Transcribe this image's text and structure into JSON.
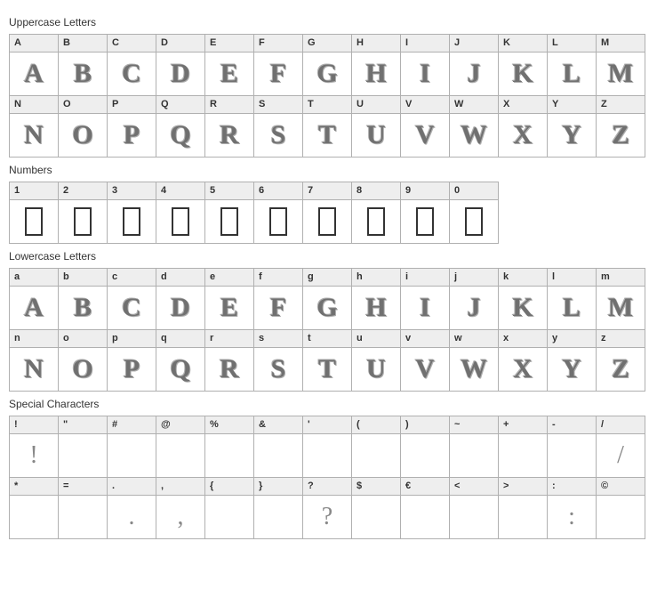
{
  "sections": [
    {
      "title": "Uppercase Letters",
      "row_length": 13,
      "chars": [
        {
          "label": "A",
          "glyph": "A",
          "style": "decorative"
        },
        {
          "label": "B",
          "glyph": "B",
          "style": "decorative"
        },
        {
          "label": "C",
          "glyph": "C",
          "style": "decorative"
        },
        {
          "label": "D",
          "glyph": "D",
          "style": "decorative"
        },
        {
          "label": "E",
          "glyph": "E",
          "style": "decorative"
        },
        {
          "label": "F",
          "glyph": "F",
          "style": "decorative"
        },
        {
          "label": "G",
          "glyph": "G",
          "style": "decorative"
        },
        {
          "label": "H",
          "glyph": "H",
          "style": "decorative"
        },
        {
          "label": "I",
          "glyph": "I",
          "style": "decorative"
        },
        {
          "label": "J",
          "glyph": "J",
          "style": "decorative"
        },
        {
          "label": "K",
          "glyph": "K",
          "style": "decorative"
        },
        {
          "label": "L",
          "glyph": "L",
          "style": "decorative"
        },
        {
          "label": "M",
          "glyph": "M",
          "style": "decorative"
        },
        {
          "label": "N",
          "glyph": "N",
          "style": "decorative"
        },
        {
          "label": "O",
          "glyph": "O",
          "style": "decorative"
        },
        {
          "label": "P",
          "glyph": "P",
          "style": "decorative"
        },
        {
          "label": "Q",
          "glyph": "Q",
          "style": "decorative"
        },
        {
          "label": "R",
          "glyph": "R",
          "style": "decorative"
        },
        {
          "label": "S",
          "glyph": "S",
          "style": "decorative"
        },
        {
          "label": "T",
          "glyph": "T",
          "style": "decorative"
        },
        {
          "label": "U",
          "glyph": "U",
          "style": "decorative"
        },
        {
          "label": "V",
          "glyph": "V",
          "style": "decorative"
        },
        {
          "label": "W",
          "glyph": "W",
          "style": "decorative"
        },
        {
          "label": "X",
          "glyph": "X",
          "style": "decorative"
        },
        {
          "label": "Y",
          "glyph": "Y",
          "style": "decorative"
        },
        {
          "label": "Z",
          "glyph": "Z",
          "style": "decorative"
        }
      ]
    },
    {
      "title": "Numbers",
      "row_length": 10,
      "chars": [
        {
          "label": "1",
          "glyph": "",
          "style": "empty-box"
        },
        {
          "label": "2",
          "glyph": "",
          "style": "empty-box"
        },
        {
          "label": "3",
          "glyph": "",
          "style": "empty-box"
        },
        {
          "label": "4",
          "glyph": "",
          "style": "empty-box"
        },
        {
          "label": "5",
          "glyph": "",
          "style": "empty-box"
        },
        {
          "label": "6",
          "glyph": "",
          "style": "empty-box"
        },
        {
          "label": "7",
          "glyph": "",
          "style": "empty-box"
        },
        {
          "label": "8",
          "glyph": "",
          "style": "empty-box"
        },
        {
          "label": "9",
          "glyph": "",
          "style": "empty-box"
        },
        {
          "label": "0",
          "glyph": "",
          "style": "empty-box"
        }
      ]
    },
    {
      "title": "Lowercase Letters",
      "row_length": 13,
      "chars": [
        {
          "label": "a",
          "glyph": "A",
          "style": "decorative"
        },
        {
          "label": "b",
          "glyph": "B",
          "style": "decorative"
        },
        {
          "label": "c",
          "glyph": "C",
          "style": "decorative"
        },
        {
          "label": "d",
          "glyph": "D",
          "style": "decorative"
        },
        {
          "label": "e",
          "glyph": "E",
          "style": "decorative"
        },
        {
          "label": "f",
          "glyph": "F",
          "style": "decorative"
        },
        {
          "label": "g",
          "glyph": "G",
          "style": "decorative"
        },
        {
          "label": "h",
          "glyph": "H",
          "style": "decorative"
        },
        {
          "label": "i",
          "glyph": "I",
          "style": "decorative"
        },
        {
          "label": "j",
          "glyph": "J",
          "style": "decorative"
        },
        {
          "label": "k",
          "glyph": "K",
          "style": "decorative"
        },
        {
          "label": "l",
          "glyph": "L",
          "style": "decorative"
        },
        {
          "label": "m",
          "glyph": "M",
          "style": "decorative"
        },
        {
          "label": "n",
          "glyph": "N",
          "style": "decorative"
        },
        {
          "label": "o",
          "glyph": "O",
          "style": "decorative"
        },
        {
          "label": "p",
          "glyph": "P",
          "style": "decorative"
        },
        {
          "label": "q",
          "glyph": "Q",
          "style": "decorative"
        },
        {
          "label": "r",
          "glyph": "R",
          "style": "decorative"
        },
        {
          "label": "s",
          "glyph": "S",
          "style": "decorative"
        },
        {
          "label": "t",
          "glyph": "T",
          "style": "decorative"
        },
        {
          "label": "u",
          "glyph": "U",
          "style": "decorative"
        },
        {
          "label": "v",
          "glyph": "V",
          "style": "decorative"
        },
        {
          "label": "w",
          "glyph": "W",
          "style": "decorative"
        },
        {
          "label": "x",
          "glyph": "X",
          "style": "decorative"
        },
        {
          "label": "y",
          "glyph": "Y",
          "style": "decorative"
        },
        {
          "label": "z",
          "glyph": "Z",
          "style": "decorative"
        }
      ]
    },
    {
      "title": "Special Characters",
      "row_length": 13,
      "chars": [
        {
          "label": "!",
          "glyph": "!",
          "style": "special"
        },
        {
          "label": "\"",
          "glyph": "",
          "style": "blank"
        },
        {
          "label": "#",
          "glyph": "",
          "style": "blank"
        },
        {
          "label": "@",
          "glyph": "",
          "style": "blank"
        },
        {
          "label": "%",
          "glyph": "",
          "style": "blank"
        },
        {
          "label": "&",
          "glyph": "",
          "style": "blank"
        },
        {
          "label": "'",
          "glyph": "",
          "style": "blank"
        },
        {
          "label": "(",
          "glyph": "",
          "style": "blank"
        },
        {
          "label": ")",
          "glyph": "",
          "style": "blank"
        },
        {
          "label": "~",
          "glyph": "",
          "style": "blank"
        },
        {
          "label": "+",
          "glyph": "",
          "style": "blank"
        },
        {
          "label": "-",
          "glyph": "",
          "style": "blank"
        },
        {
          "label": "/",
          "glyph": "/",
          "style": "special"
        },
        {
          "label": "*",
          "glyph": "",
          "style": "blank"
        },
        {
          "label": "=",
          "glyph": "",
          "style": "blank"
        },
        {
          "label": ".",
          "glyph": ".",
          "style": "special"
        },
        {
          "label": ",",
          "glyph": ",",
          "style": "special"
        },
        {
          "label": "{",
          "glyph": "",
          "style": "blank"
        },
        {
          "label": "}",
          "glyph": "",
          "style": "blank"
        },
        {
          "label": "?",
          "glyph": "?",
          "style": "special"
        },
        {
          "label": "$",
          "glyph": "",
          "style": "blank"
        },
        {
          "label": "€",
          "glyph": "",
          "style": "blank"
        },
        {
          "label": "<",
          "glyph": "",
          "style": "blank"
        },
        {
          "label": ">",
          "glyph": "",
          "style": "blank"
        },
        {
          "label": ":",
          "glyph": ":",
          "style": "special"
        },
        {
          "label": "©",
          "glyph": "",
          "style": "blank"
        }
      ]
    }
  ],
  "colors": {
    "label_bg": "#eeeeee",
    "border": "#b0b0b0",
    "text": "#333333",
    "glyph_outline": "#666666"
  }
}
